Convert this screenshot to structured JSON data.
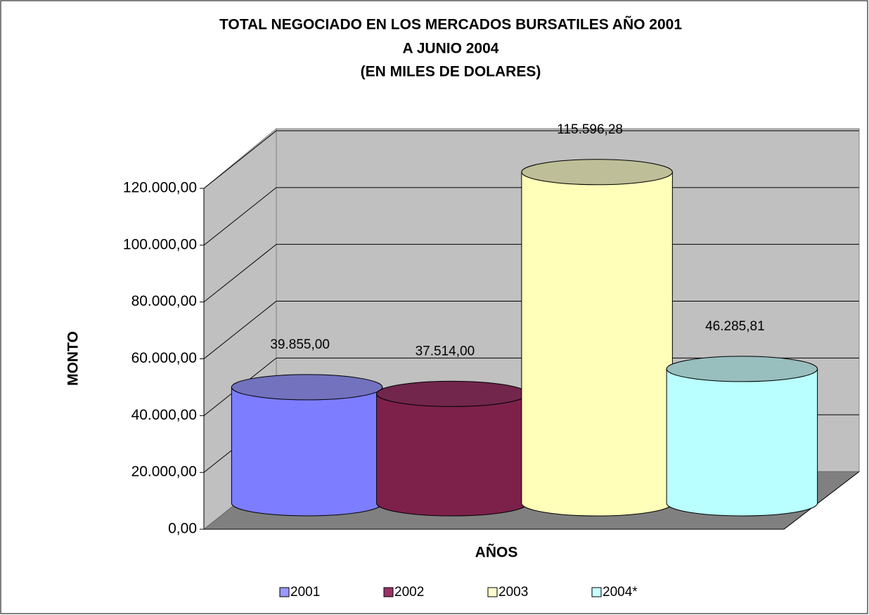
{
  "chart_data": {
    "type": "cylinder",
    "title": [
      "TOTAL NEGOCIADO EN LOS MERCADOS BURSATILES AÑO 2001",
      "A JUNIO 2004",
      "(EN MILES DE DOLARES)"
    ],
    "x_label": "AÑOS",
    "y_label": "MONTO",
    "series": [
      {
        "name": "2001",
        "color": "#9999ff",
        "values": [
          39855
        ],
        "value_labels": [
          "39.855,00"
        ]
      },
      {
        "name": "2002",
        "color": "#993366",
        "values": [
          37514
        ],
        "value_labels": [
          "37.514,00"
        ]
      },
      {
        "name": "2003",
        "color": "#ffffcc",
        "values": [
          115596.28
        ],
        "value_labels": [
          "115.596,28"
        ]
      },
      {
        "name": "2004*",
        "color": "#ccffff",
        "values": [
          46285.81
        ],
        "value_labels": [
          "46.285,81"
        ]
      }
    ],
    "ylim": [
      0,
      120000
    ],
    "yticks": [
      {
        "value": 0,
        "label": "0,00"
      },
      {
        "value": 20000,
        "label": "20.000,00"
      },
      {
        "value": 40000,
        "label": "40.000,00"
      },
      {
        "value": 60000,
        "label": "60.000,00"
      },
      {
        "value": 80000,
        "label": "80.000,00"
      },
      {
        "value": 100000,
        "label": "100.000,00"
      },
      {
        "value": 120000,
        "label": "120.000,00"
      }
    ],
    "grid": true,
    "legend": "bottom"
  }
}
